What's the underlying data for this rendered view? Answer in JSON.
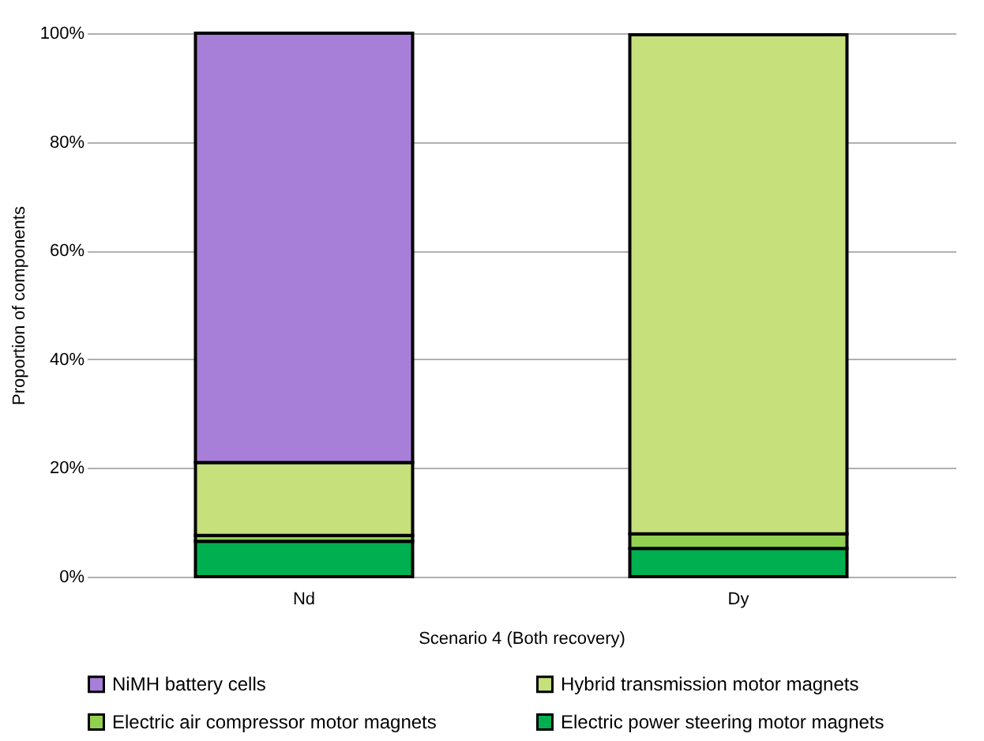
{
  "chart_data": {
    "type": "bar",
    "stacked": true,
    "xlabel": "Scenario 4 (Both recovery)",
    "ylabel": "Proportion of components",
    "categories": [
      "Nd",
      "Dy"
    ],
    "series": [
      {
        "name": "Electric power steering motor magnets",
        "color": "#00b050",
        "values": [
          6.5,
          5.2
        ]
      },
      {
        "name": "Electric air compressor motor magnets",
        "color": "#92d050",
        "values": [
          1.1,
          2.7
        ]
      },
      {
        "name": "Hybrid transmission motor magnets",
        "color": "#c6e07c",
        "values": [
          13.4,
          91.8
        ]
      },
      {
        "name": "NiMH battery cells",
        "color": "#a77fd8",
        "values": [
          79,
          null
        ]
      }
    ],
    "ylim": [
      0,
      100
    ],
    "yticks": [
      {
        "value": 0,
        "label": "0%"
      },
      {
        "value": 20,
        "label": "20%"
      },
      {
        "value": 40,
        "label": "40%"
      },
      {
        "value": 60,
        "label": "60%"
      },
      {
        "value": 80,
        "label": "80%"
      },
      {
        "value": 100,
        "label": "100%"
      }
    ],
    "grid": "y",
    "legend": "bottom"
  }
}
